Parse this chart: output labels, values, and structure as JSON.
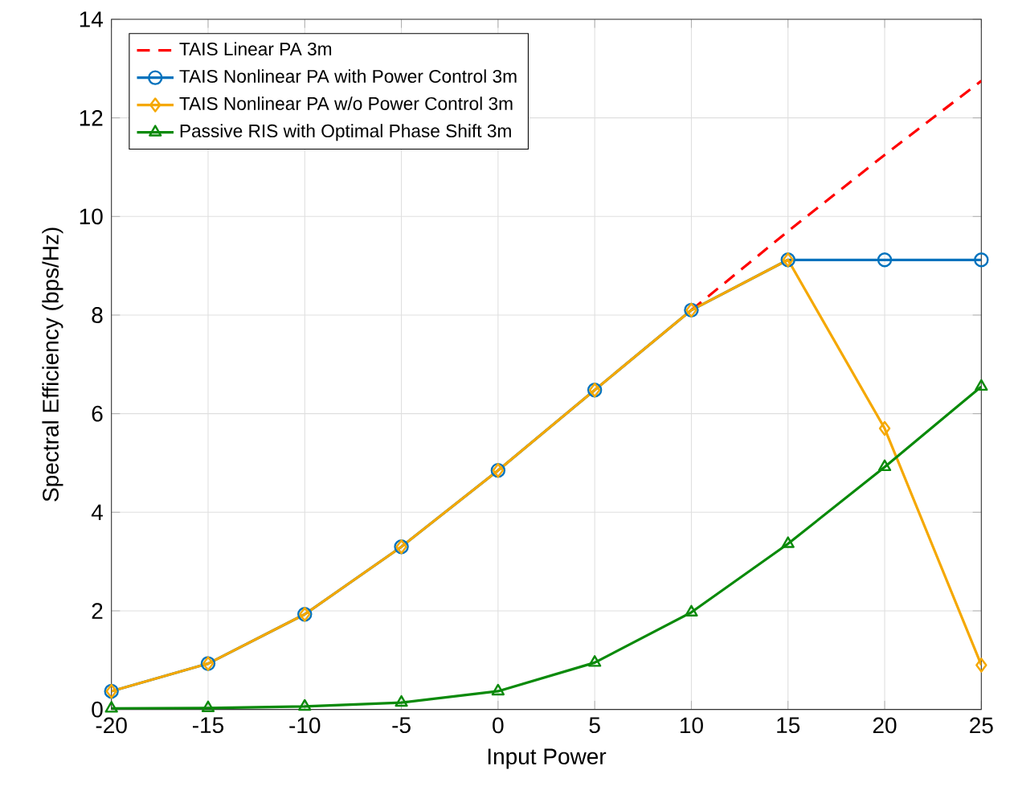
{
  "chart_data": {
    "type": "line",
    "xlabel": "Input Power",
    "ylabel": "Spectral Efficiency (bps/Hz)",
    "x": [
      -20,
      -15,
      -10,
      -5,
      0,
      5,
      10,
      15,
      20,
      25
    ],
    "xlim": [
      -20,
      25
    ],
    "ylim": [
      0,
      14
    ],
    "xticks": [
      -20,
      -15,
      -10,
      -5,
      0,
      5,
      10,
      15,
      20,
      25
    ],
    "yticks": [
      0,
      2,
      4,
      6,
      8,
      10,
      12,
      14
    ],
    "grid": true,
    "legend": "top left",
    "series": [
      {
        "name": "TAIS Linear PA 3m",
        "color": "#ff0000",
        "marker": "none",
        "line_style": "dashed",
        "values": [
          null,
          null,
          null,
          null,
          null,
          null,
          8.1,
          9.7,
          11.25,
          12.75
        ]
      },
      {
        "name": "TAIS Nonlinear PA with Power Control 3m",
        "color": "#0072bd",
        "marker": "circle",
        "line_style": "solid",
        "values": [
          0.37,
          0.93,
          1.93,
          3.3,
          4.85,
          6.48,
          8.1,
          9.12,
          9.12,
          9.12
        ]
      },
      {
        "name": "TAIS Nonlinear PA w/o Power Control 3m",
        "color": "#f5a800",
        "marker": "diamond",
        "line_style": "solid",
        "values": [
          0.37,
          0.93,
          1.93,
          3.3,
          4.85,
          6.48,
          8.1,
          9.12,
          5.7,
          0.9
        ]
      },
      {
        "name": "Passive RIS  with Optimal Phase Shift 3m",
        "color": "#0a8a0a",
        "marker": "triangle",
        "line_style": "solid",
        "values": [
          0.02,
          0.03,
          0.06,
          0.14,
          0.37,
          0.95,
          1.97,
          3.36,
          4.92,
          6.55
        ]
      }
    ]
  }
}
